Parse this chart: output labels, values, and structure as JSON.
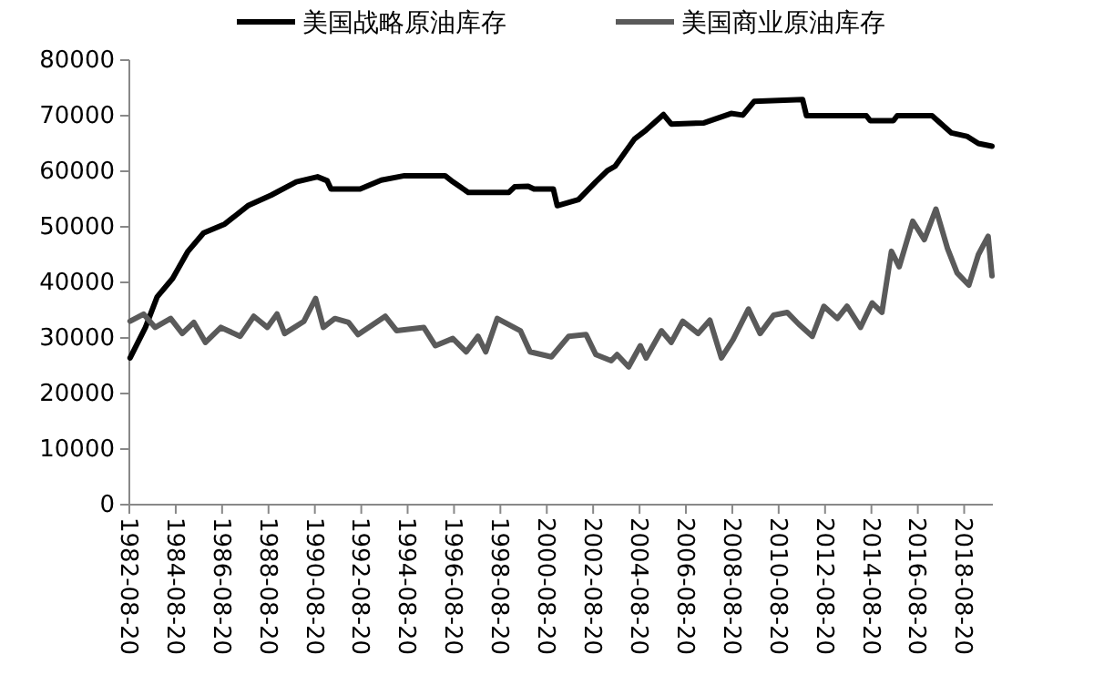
{
  "chart_data": {
    "type": "line",
    "legend": "top",
    "marker": "none",
    "line_style": "solid",
    "grid": false,
    "xlim": [
      "1982-08-20",
      "2019-11-15"
    ],
    "xticks": [
      "1982-08-20",
      "1984-08-20",
      "1986-08-20",
      "1988-08-20",
      "1990-08-20",
      "1992-08-20",
      "1994-08-20",
      "1996-08-20",
      "1998-08-20",
      "2000-08-20",
      "2002-08-20",
      "2004-08-20",
      "2006-08-20",
      "2008-08-20",
      "2010-08-20",
      "2012-08-20",
      "2014-08-20",
      "2016-08-20",
      "2018-08-20"
    ],
    "ylim": [
      0,
      80000
    ],
    "yticks": [
      0,
      10000,
      20000,
      30000,
      40000,
      50000,
      60000,
      70000,
      80000
    ],
    "series": [
      {
        "name": "美国战略原油库存",
        "color": "#000000",
        "x": [
          "1982-09",
          "1983-05",
          "1983-11",
          "1984-07",
          "1985-03",
          "1985-11",
          "1986-10",
          "1987-10",
          "1988-10",
          "1989-11",
          "1990-10",
          "1991-03",
          "1991-05",
          "1992-08",
          "1993-07",
          "1994-07",
          "1996-04",
          "1996-08",
          "1997-04",
          "1999-01",
          "1999-04",
          "1999-11",
          "2000-02",
          "2000-12",
          "2001-02",
          "2002-01",
          "2002-10",
          "2003-04",
          "2003-08",
          "2004-06",
          "2004-12",
          "2005-09",
          "2006-01",
          "2007-06",
          "2008-08",
          "2009-02",
          "2009-08",
          "2011-09",
          "2011-11",
          "2014-06",
          "2014-08",
          "2015-08",
          "2015-10",
          "2017-04",
          "2018-02",
          "2018-10",
          "2019-04",
          "2019-11"
        ],
        "values": [
          26400,
          31900,
          37400,
          40700,
          45600,
          48900,
          50500,
          53800,
          55700,
          58100,
          59000,
          58300,
          56800,
          56800,
          58400,
          59200,
          59200,
          58100,
          56200,
          56200,
          57200,
          57300,
          56800,
          56800,
          53800,
          54900,
          58100,
          60100,
          60900,
          65800,
          67400,
          70200,
          68500,
          68700,
          70400,
          70100,
          72600,
          72900,
          70000,
          70000,
          69100,
          69100,
          70000,
          70000,
          66900,
          66300,
          65000,
          64500
        ]
      },
      {
        "name": "美国商业原油库存",
        "color": "#5a5a5a",
        "x": [
          "1982-09",
          "1983-04",
          "1983-10",
          "1984-06",
          "1984-12",
          "1985-06",
          "1985-12",
          "1986-08",
          "1987-06",
          "1988-01",
          "1988-08",
          "1989-01",
          "1989-05",
          "1990-03",
          "1990-09",
          "1991-01",
          "1991-07",
          "1992-02",
          "1992-07",
          "1993-09",
          "1994-03",
          "1995-05",
          "1995-11",
          "1996-08",
          "1997-03",
          "1997-09",
          "1998-01",
          "1998-07",
          "1999-07",
          "1999-12",
          "2000-11",
          "2001-08",
          "2002-05",
          "2002-10",
          "2003-06",
          "2003-09",
          "2004-03",
          "2004-09",
          "2004-12",
          "2005-08",
          "2006-01",
          "2006-07",
          "2007-03",
          "2007-09",
          "2008-03",
          "2008-09",
          "2009-05",
          "2009-11",
          "2010-06",
          "2011-01",
          "2011-07",
          "2012-02",
          "2012-08",
          "2013-03",
          "2013-08",
          "2014-03",
          "2014-09",
          "2015-02",
          "2015-07",
          "2015-11",
          "2016-06",
          "2016-12",
          "2017-06",
          "2017-12",
          "2018-05",
          "2018-11",
          "2019-04",
          "2019-09",
          "2019-11"
        ],
        "values": [
          33000,
          34300,
          31900,
          33500,
          30800,
          32800,
          29200,
          31900,
          30300,
          33900,
          31900,
          34300,
          30800,
          33000,
          37100,
          31900,
          33500,
          32800,
          30600,
          33900,
          31300,
          31900,
          28600,
          29900,
          27500,
          30300,
          27500,
          33500,
          31300,
          27500,
          26600,
          30300,
          30600,
          27000,
          25900,
          27000,
          24800,
          28600,
          26400,
          31300,
          29200,
          33000,
          30800,
          33200,
          26400,
          29700,
          35200,
          30800,
          34100,
          34600,
          32500,
          30300,
          35700,
          33500,
          35700,
          31900,
          36300,
          34600,
          45600,
          42800,
          51000,
          47700,
          53200,
          46100,
          41700,
          39500,
          45000,
          48300,
          41200
        ]
      }
    ]
  }
}
